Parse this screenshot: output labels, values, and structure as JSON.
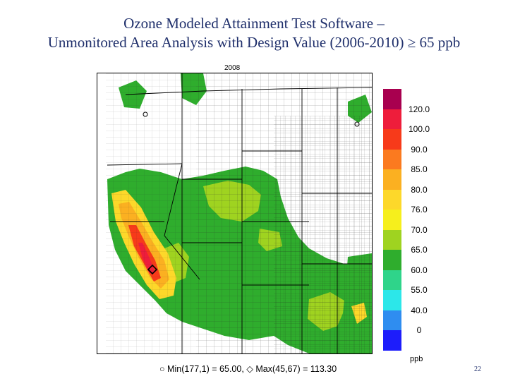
{
  "slide": {
    "title_line1": "Ozone Modeled Attainment Test Software –",
    "title_line2": "Unmonitored Area Analysis with Design Value (2006-2010) ≥ 65 ppb",
    "page_number": "22"
  },
  "map": {
    "year_label": "2008",
    "footer_min_symbol": "○",
    "footer_min": "Min(177,1) = 65.00,",
    "footer_max_symbol": "◇",
    "footer_max": "Max(45,67) = 113.30"
  },
  "legend": {
    "unit": "ppb",
    "ticks": [
      "120.0",
      "100.0",
      "90.0",
      "85.0",
      "80.0",
      "76.0",
      "70.0",
      "65.0",
      "60.0",
      "55.0",
      "40.0",
      "0"
    ],
    "colors": [
      "#a8004f",
      "#ee1d3b",
      "#f73a1a",
      "#fb7a1f",
      "#fbb021",
      "#fdd82a",
      "#f6ef1c",
      "#9fd320",
      "#2fad2d",
      "#2fd48a",
      "#2ce7e9",
      "#2f8df0",
      "#1d1dfb"
    ]
  }
}
